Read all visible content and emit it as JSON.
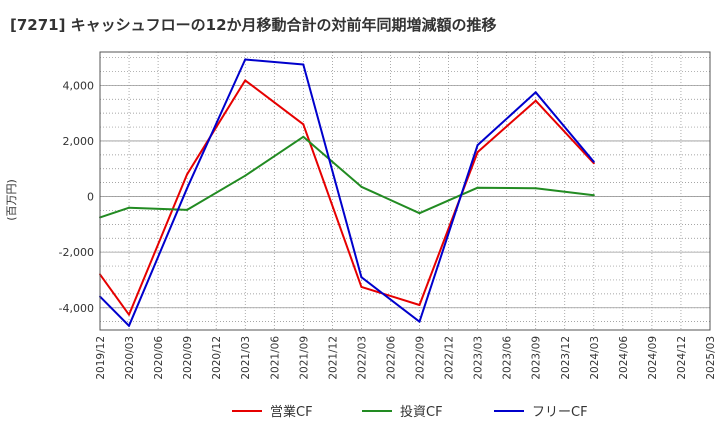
{
  "chart_data": {
    "type": "line",
    "title": "[7271]  キャッシュフローの12か月移動合計の対前年同期増減額の推移",
    "ylabel": "(百万円)",
    "xlabel": "",
    "ylim": [
      -4800,
      5200
    ],
    "yticks": [
      -4000,
      -2000,
      0,
      2000,
      4000
    ],
    "ytick_labels": [
      "-4,000",
      "-2,000",
      "0",
      "2,000",
      "4,000"
    ],
    "x_ticks": [
      "2019/12",
      "2020/03",
      "2020/06",
      "2020/09",
      "2020/12",
      "2021/03",
      "2021/06",
      "2021/09",
      "2021/12",
      "2022/03",
      "2022/06",
      "2022/09",
      "2022/12",
      "2023/03",
      "2023/06",
      "2023/09",
      "2023/12",
      "2024/03",
      "2024/06",
      "2024/09",
      "2024/12",
      "2025/03"
    ],
    "grid": true,
    "legend_position": "bottom-center",
    "series": [
      {
        "name": "営業CF",
        "color": "#e60000",
        "points": [
          [
            "2019/12",
            -2800
          ],
          [
            "2020/03",
            -4250
          ],
          [
            "2020/09",
            800
          ],
          [
            "2021/03",
            4180
          ],
          [
            "2021/09",
            2600
          ],
          [
            "2022/03",
            -3250
          ],
          [
            "2022/09",
            -3900
          ],
          [
            "2023/03",
            1600
          ],
          [
            "2023/09",
            3450
          ],
          [
            "2024/03",
            1200
          ]
        ]
      },
      {
        "name": "投資CF",
        "color": "#228b22",
        "points": [
          [
            "2019/12",
            -750
          ],
          [
            "2020/03",
            -400
          ],
          [
            "2020/09",
            -480
          ],
          [
            "2021/03",
            750
          ],
          [
            "2021/09",
            2150
          ],
          [
            "2022/03",
            350
          ],
          [
            "2022/09",
            -600
          ],
          [
            "2023/03",
            320
          ],
          [
            "2023/09",
            300
          ],
          [
            "2024/03",
            50
          ]
        ]
      },
      {
        "name": "フリーCF",
        "color": "#0000cc",
        "points": [
          [
            "2019/12",
            -3600
          ],
          [
            "2020/03",
            -4650
          ],
          [
            "2020/09",
            300
          ],
          [
            "2021/03",
            4930
          ],
          [
            "2021/09",
            4750
          ],
          [
            "2022/03",
            -2900
          ],
          [
            "2022/09",
            -4500
          ],
          [
            "2023/03",
            1850
          ],
          [
            "2023/09",
            3750
          ],
          [
            "2024/03",
            1250
          ]
        ]
      }
    ]
  }
}
